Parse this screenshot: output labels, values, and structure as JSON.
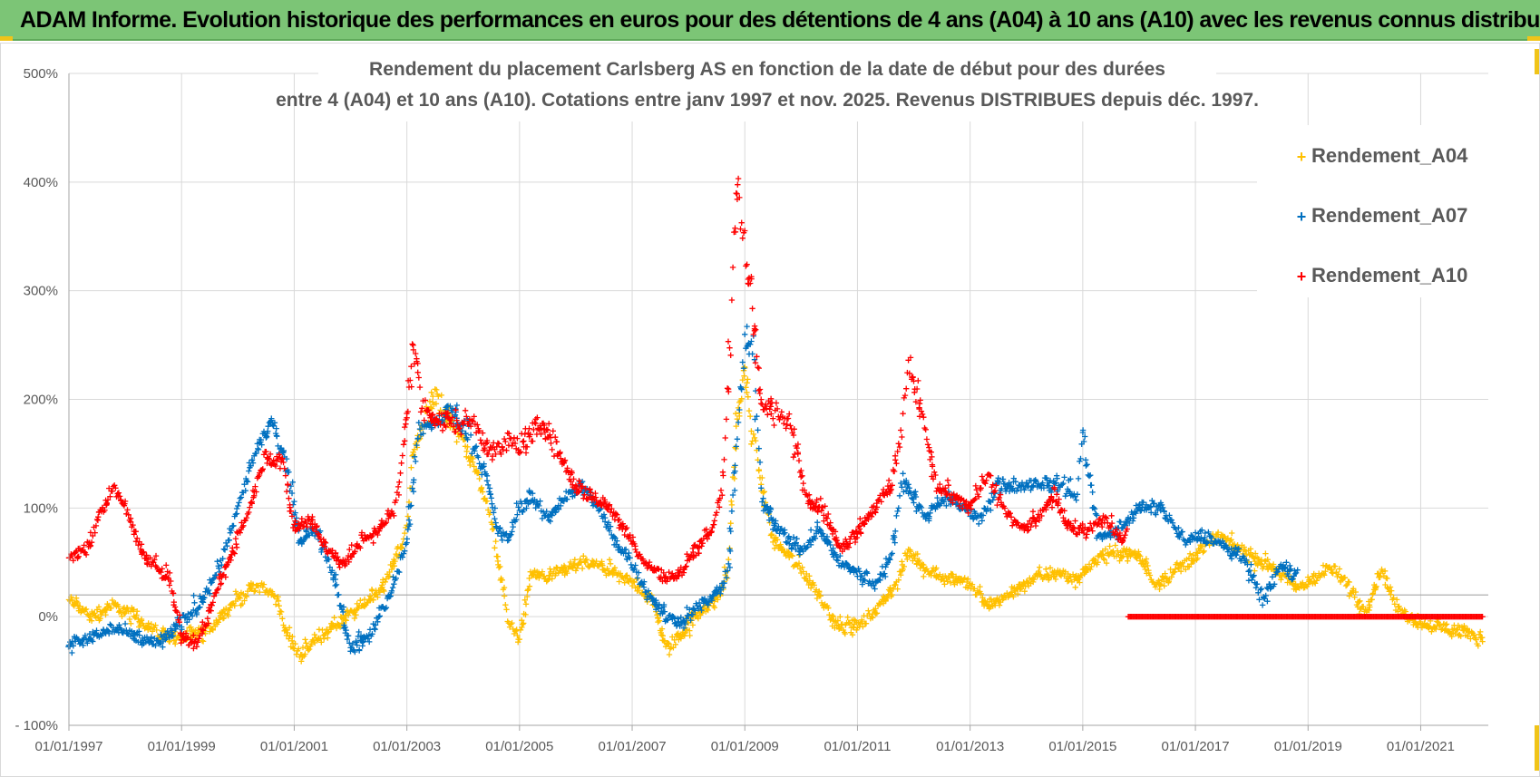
{
  "banner": {
    "title": "ADAM Informe. Evolution historique des performances en euros pour des détentions de 4 ans (A04) à 10 ans (A10) avec les revenus connus distribués"
  },
  "colors": {
    "A04": "#ffc000",
    "A07": "#0070c0",
    "A10": "#ff0000",
    "banner": "#7cc576",
    "grid": "#d9d9d9",
    "zero_line": "#a6a6a6"
  },
  "chart_data": {
    "type": "scatter",
    "title": "Rendement du placement Carlsberg AS en fonction de la date de début pour des durées",
    "subtitle": "entre 4 (A04) et 10 ans (A10). Cotations entre janv 1997 et nov. 2025. Revenus DISTRIBUES depuis déc. 1997.",
    "x_tick_labels": [
      "01/01/1997",
      "01/01/1999",
      "01/01/2001",
      "01/01/2003",
      "01/01/2005",
      "01/01/2007",
      "01/01/2009",
      "01/01/2011",
      "01/01/2013",
      "01/01/2015",
      "01/01/2017",
      "01/01/2019",
      "01/01/2021"
    ],
    "y_tick_labels": [
      "500%",
      "400%",
      "300%",
      "200%",
      "100%",
      "0%",
      "- 100%"
    ],
    "y_tick_values": [
      500,
      400,
      300,
      200,
      100,
      0,
      -100
    ],
    "xlim": [
      1997.0,
      2022.2
    ],
    "ylim": [
      -100,
      500
    ],
    "reference_line": 20,
    "series": [
      {
        "name": "Rendement_A04",
        "marker": "+",
        "end": 2022.1,
        "x": [
          1997.0,
          1997.4,
          1997.8,
          1998.2,
          1998.6,
          1999.0,
          1999.4,
          1999.8,
          2000.1,
          2000.4,
          2000.7,
          2000.9,
          2001.1,
          2001.5,
          2001.8,
          2002.2,
          2002.6,
          2003.0,
          2003.1,
          2003.3,
          2003.5,
          2003.8,
          2004.1,
          2004.4,
          2004.6,
          2004.8,
          2005.0,
          2005.2,
          2005.5,
          2005.9,
          2006.2,
          2006.5,
          2006.8,
          2007.1,
          2007.4,
          2007.6,
          2007.9,
          2008.2,
          2008.5,
          2008.7,
          2008.85,
          2009.0,
          2009.2,
          2009.5,
          2009.9,
          2010.2,
          2010.6,
          2011.0,
          2011.4,
          2011.7,
          2011.9,
          2012.3,
          2012.7,
          2013.0,
          2013.3,
          2013.7,
          2014.1,
          2014.5,
          2014.9,
          2015.3,
          2015.7,
          2016.0,
          2016.3,
          2016.7,
          2017.1,
          2017.4,
          2017.7,
          2018.0,
          2018.4,
          2018.8,
          2019.1,
          2019.4,
          2019.7,
          2020.0,
          2020.1,
          2020.3,
          2020.6,
          2021.0,
          2021.4,
          2021.8,
          2022.1
        ],
        "values": [
          15,
          0,
          10,
          0,
          -15,
          -20,
          -15,
          5,
          20,
          30,
          15,
          -20,
          -35,
          -15,
          -5,
          10,
          30,
          80,
          150,
          180,
          200,
          180,
          150,
          110,
          60,
          -5,
          -20,
          40,
          35,
          45,
          50,
          45,
          35,
          30,
          10,
          -30,
          -15,
          5,
          15,
          40,
          180,
          220,
          150,
          70,
          50,
          30,
          -5,
          -10,
          10,
          30,
          60,
          40,
          35,
          30,
          10,
          20,
          35,
          40,
          35,
          55,
          60,
          55,
          30,
          45,
          60,
          75,
          65,
          55,
          45,
          25,
          35,
          45,
          30,
          5,
          15,
          45,
          5,
          -5,
          -10,
          -15,
          -20
        ]
      },
      {
        "name": "Rendement_A07",
        "marker": "+",
        "end": 2018.8,
        "x": [
          1997.0,
          1997.4,
          1997.8,
          1998.2,
          1998.6,
          1998.9,
          1999.3,
          1999.7,
          2000.0,
          2000.3,
          2000.6,
          2000.9,
          2001.1,
          2001.4,
          2001.7,
          2002.0,
          2002.3,
          2002.7,
          2003.0,
          2003.2,
          2003.5,
          2003.8,
          2004.1,
          2004.4,
          2004.6,
          2004.8,
          2005.0,
          2005.2,
          2005.5,
          2005.8,
          2006.1,
          2006.4,
          2006.7,
          2007.0,
          2007.3,
          2007.6,
          2007.9,
          2008.2,
          2008.5,
          2008.7,
          2008.85,
          2009.0,
          2009.15,
          2009.3,
          2009.6,
          2010.0,
          2010.3,
          2010.7,
          2011.0,
          2011.3,
          2011.6,
          2011.8,
          2012.0,
          2012.2,
          2012.5,
          2012.9,
          2013.2,
          2013.5,
          2013.8,
          2014.2,
          2014.6,
          2014.9,
          2015.0,
          2015.3,
          2015.6,
          2016.0,
          2016.4,
          2016.8,
          2017.2,
          2017.5,
          2017.9,
          2018.2,
          2018.5,
          2018.8
        ],
        "values": [
          -25,
          -20,
          -10,
          -20,
          -25,
          -10,
          10,
          50,
          100,
          150,
          180,
          130,
          70,
          80,
          40,
          -30,
          -20,
          20,
          70,
          170,
          180,
          190,
          170,
          130,
          80,
          70,
          100,
          110,
          90,
          110,
          120,
          100,
          70,
          50,
          20,
          0,
          -5,
          10,
          20,
          40,
          160,
          250,
          250,
          110,
          80,
          60,
          80,
          50,
          40,
          30,
          55,
          130,
          110,
          90,
          110,
          100,
          90,
          120,
          120,
          120,
          125,
          110,
          170,
          70,
          80,
          100,
          100,
          70,
          75,
          65,
          50,
          15,
          45,
          40
        ]
      },
      {
        "name": "Rendement_A10",
        "marker": "+",
        "end": 2022.1,
        "zero_from": 2015.8,
        "x": [
          1997.0,
          1997.3,
          1997.6,
          1997.8,
          1998.0,
          1998.3,
          1998.6,
          1998.8,
          1999.0,
          1999.3,
          1999.6,
          1999.9,
          2000.2,
          2000.5,
          2000.8,
          2001.0,
          2001.3,
          2001.6,
          2001.9,
          2002.2,
          2002.5,
          2002.8,
          2003.0,
          2003.1,
          2003.3,
          2003.6,
          2003.9,
          2004.2,
          2004.5,
          2004.8,
          2005.1,
          2005.4,
          2005.7,
          2006.0,
          2006.3,
          2006.6,
          2006.9,
          2007.2,
          2007.5,
          2007.8,
          2008.1,
          2008.4,
          2008.6,
          2008.75,
          2008.85,
          2009.0,
          2009.15,
          2009.3,
          2009.5,
          2009.8,
          2010.1,
          2010.4,
          2010.7,
          2011.0,
          2011.3,
          2011.6,
          2011.75,
          2011.9,
          2012.1,
          2012.4,
          2012.7,
          2013.0,
          2013.3,
          2013.6,
          2013.9,
          2014.2,
          2014.5,
          2014.8,
          2015.1,
          2015.4,
          2015.7,
          2015.8
        ],
        "values": [
          55,
          60,
          100,
          120,
          100,
          60,
          45,
          35,
          -20,
          -25,
          20,
          60,
          100,
          150,
          140,
          80,
          90,
          60,
          50,
          70,
          80,
          100,
          180,
          250,
          190,
          180,
          180,
          180,
          150,
          160,
          160,
          180,
          150,
          120,
          110,
          100,
          80,
          50,
          40,
          35,
          60,
          80,
          120,
          250,
          400,
          340,
          280,
          190,
          190,
          180,
          110,
          100,
          60,
          80,
          100,
          120,
          160,
          230,
          200,
          120,
          110,
          100,
          130,
          100,
          80,
          90,
          110,
          80,
          80,
          90,
          70,
          80
        ]
      }
    ],
    "legend": {
      "position": "top-right",
      "entries": [
        "Rendement_A04",
        "Rendement_A07",
        "Rendement_A10"
      ]
    }
  }
}
